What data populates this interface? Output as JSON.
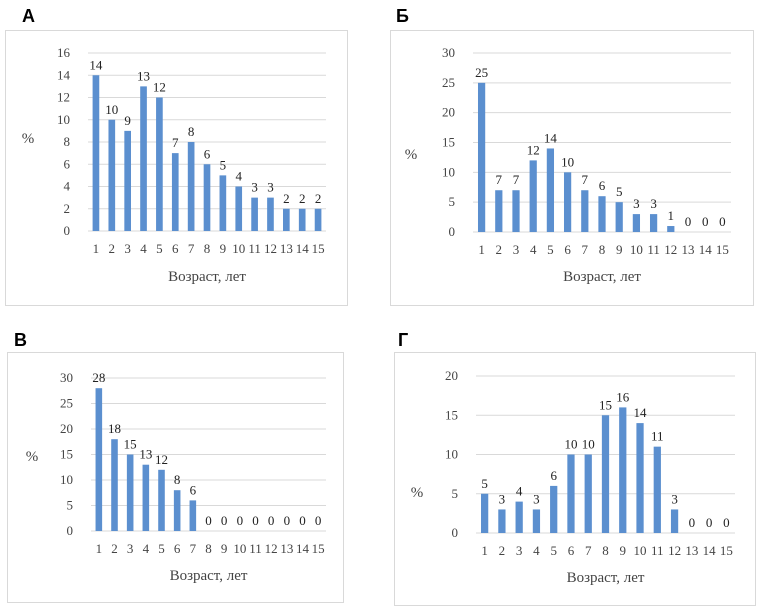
{
  "bar_color": "#5b8fcf",
  "grid_color": "#d9d9d9",
  "chart_data": [
    {
      "type": "bar",
      "panel_label": "А",
      "categories": [
        "1",
        "2",
        "3",
        "4",
        "5",
        "6",
        "7",
        "8",
        "9",
        "10",
        "11",
        "12",
        "13",
        "14",
        "15"
      ],
      "values": [
        14,
        10,
        9,
        13,
        12,
        7,
        8,
        6,
        5,
        4,
        3,
        3,
        2,
        2,
        2
      ],
      "yticks": [
        "0",
        "2",
        "4",
        "6",
        "8",
        "10",
        "12",
        "14",
        "16"
      ],
      "ylim": [
        0,
        16
      ],
      "ylabel": "%",
      "xlabel": "Возраст, лет",
      "grid": true
    },
    {
      "type": "bar",
      "panel_label": "Б",
      "categories": [
        "1",
        "2",
        "3",
        "4",
        "5",
        "6",
        "7",
        "8",
        "9",
        "10",
        "11",
        "12",
        "13",
        "14",
        "15"
      ],
      "values": [
        25,
        7,
        7,
        12,
        14,
        10,
        7,
        6,
        5,
        3,
        3,
        1,
        0,
        0,
        0
      ],
      "yticks": [
        "0",
        "5",
        "10",
        "15",
        "20",
        "25",
        "30"
      ],
      "ylim": [
        0,
        30
      ],
      "ylabel": "%",
      "xlabel": "Возраст, лет",
      "grid": true
    },
    {
      "type": "bar",
      "panel_label": "В",
      "categories": [
        "1",
        "2",
        "3",
        "4",
        "5",
        "6",
        "7",
        "8",
        "9",
        "10",
        "11",
        "12",
        "13",
        "14",
        "15"
      ],
      "values": [
        28,
        18,
        15,
        13,
        12,
        8,
        6,
        0,
        0,
        0,
        0,
        0,
        0,
        0,
        0
      ],
      "yticks": [
        "0",
        "5",
        "10",
        "15",
        "20",
        "25",
        "30"
      ],
      "ylim": [
        0,
        30
      ],
      "ylabel": "%",
      "xlabel": "Возраст, лет",
      "grid": true
    },
    {
      "type": "bar",
      "panel_label": "Г",
      "categories": [
        "1",
        "2",
        "3",
        "4",
        "5",
        "6",
        "7",
        "8",
        "9",
        "10",
        "11",
        "12",
        "13",
        "14",
        "15"
      ],
      "values": [
        5,
        3,
        4,
        3,
        6,
        10,
        10,
        15,
        16,
        14,
        11,
        3,
        0,
        0,
        0
      ],
      "yticks": [
        "0",
        "5",
        "10",
        "15",
        "20"
      ],
      "ylim": [
        0,
        20
      ],
      "ylabel": "%",
      "xlabel": "Возраст, лет",
      "grid": true
    }
  ]
}
